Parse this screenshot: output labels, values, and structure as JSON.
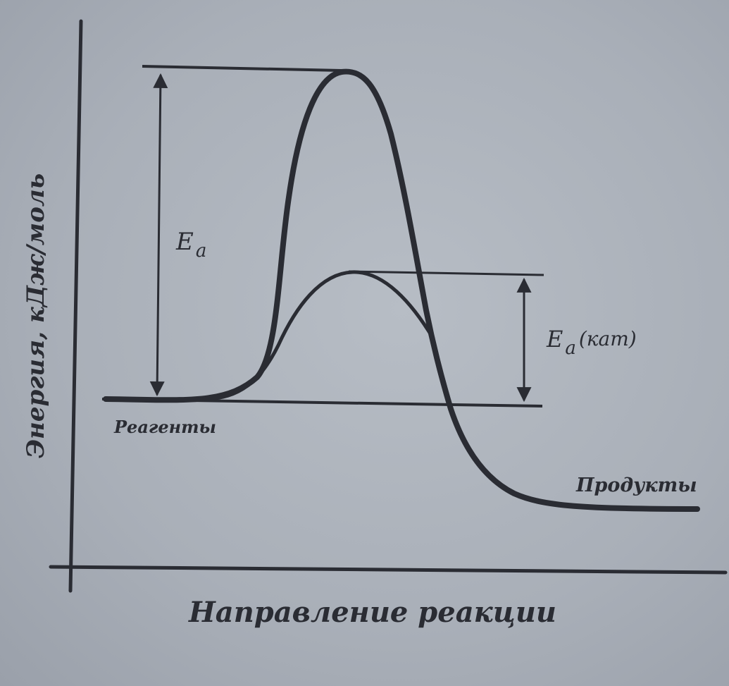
{
  "diagram": {
    "y_axis_label": "Энергия, кДж/моль",
    "x_axis_label": "Направление реакции",
    "activation_energy": {
      "symbol": "E",
      "subscript": "a"
    },
    "activation_energy_catalyzed": {
      "symbol": "E",
      "subscript": "a",
      "suffix": "(кат)"
    },
    "reagents_label": "Реагенты",
    "products_label": "Продукты",
    "ink_color": "#2a2c33"
  }
}
